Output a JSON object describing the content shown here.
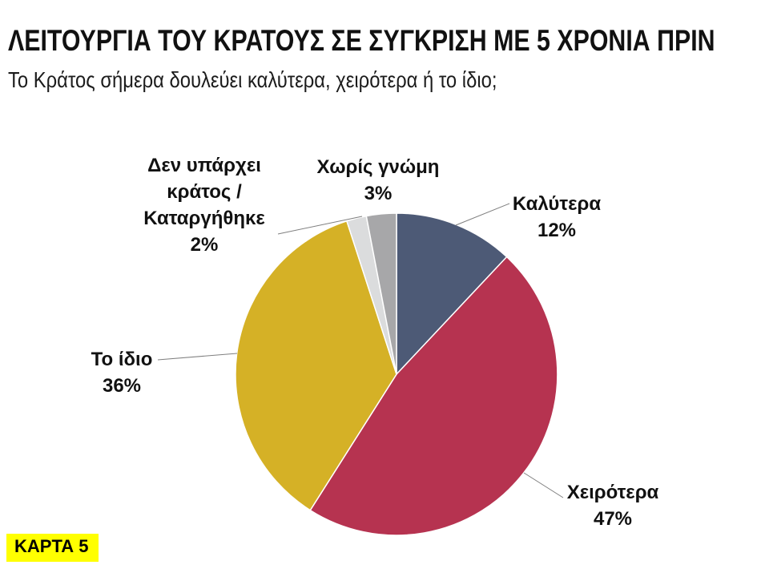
{
  "slide": {
    "title": "ΛΕΙΤΟΥΡΓΙΑ ΤΟΥ ΚΡΑΤΟΥΣ ΣΕ ΣΥΓΚΡΙΣΗ ΜΕ 5 ΧΡΟΝΙΑ ΠΡΙΝ",
    "subtitle": "Το Κράτος σήμερα δουλεύει καλύτερα, χειρότερα ή το ίδιο;",
    "card_badge": "ΚΑΡΤΑ 5",
    "badge_bg": "#FFFF00",
    "badge_text_color": "#000000"
  },
  "chart_data": {
    "type": "pie",
    "title": "ΛΕΙΤΟΥΡΓΙΑ ΤΟΥ ΚΡΑΤΟΥΣ ΣΕ ΣΥΓΚΡΙΣΗ ΜΕ 5 ΧΡΟΝΙΑ ΠΡΙΝ",
    "subtitle": "Το Κράτος σήμερα δουλεύει καλύτερα, χειρότερα ή το ίδιο;",
    "start_angle_deg": 0,
    "direction": "clockwise",
    "legend": "none",
    "data_labels": "outside with leader lines",
    "slices": [
      {
        "key": "kalytera",
        "label": "Καλύτερα",
        "value": 12,
        "pct_label": "12%",
        "color": "#4D5A76"
      },
      {
        "key": "xeirotera",
        "label": "Χειρότερα",
        "value": 47,
        "pct_label": "47%",
        "color": "#B63350"
      },
      {
        "key": "to-idio",
        "label": "Το ίδιο",
        "value": 36,
        "pct_label": "36%",
        "color": "#D5B126"
      },
      {
        "key": "den-yparxei-kratos",
        "label": "Δεν υπάρχει κράτος / Καταργήθηκε",
        "value": 2,
        "pct_label": "2%",
        "color": "#DBDCDD"
      },
      {
        "key": "xoris-gnomi",
        "label": "Χωρίς γνώμη",
        "value": 3,
        "pct_label": "3%",
        "color": "#A7A7A9"
      }
    ],
    "colors": {
      "leader_line": "#7f7f7f",
      "slice_border": "#ffffff",
      "label_text": "#111111"
    }
  }
}
